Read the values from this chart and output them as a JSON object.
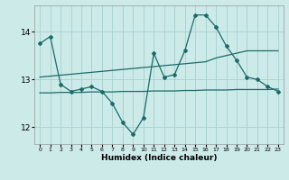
{
  "background_color": "#cceae8",
  "grid_color": "#aad4d2",
  "line_color": "#1a6b6b",
  "xlabel": "Humidex (Indice chaleur)",
  "xlim": [
    -0.5,
    23.5
  ],
  "ylim": [
    11.65,
    14.55
  ],
  "yticks": [
    12,
    13,
    14
  ],
  "series1_x": [
    0,
    1,
    2,
    3,
    4,
    5,
    6,
    7,
    8,
    9,
    10,
    11,
    12,
    13,
    14,
    15,
    16,
    17,
    18,
    19,
    20,
    21,
    22,
    23
  ],
  "series1_y": [
    13.75,
    13.9,
    12.9,
    12.75,
    12.8,
    12.85,
    12.75,
    12.5,
    12.1,
    11.85,
    12.2,
    13.55,
    13.05,
    13.1,
    13.6,
    14.35,
    14.35,
    14.1,
    13.7,
    13.4,
    13.05,
    13.0,
    12.85,
    12.75
  ],
  "series2_x": [
    0,
    1,
    2,
    3,
    4,
    5,
    6,
    7,
    8,
    9,
    10,
    11,
    12,
    13,
    14,
    15,
    16,
    17,
    18,
    19,
    20,
    21,
    22,
    23
  ],
  "series2_y": [
    13.05,
    13.07,
    13.09,
    13.11,
    13.13,
    13.15,
    13.17,
    13.19,
    13.21,
    13.23,
    13.25,
    13.27,
    13.29,
    13.31,
    13.33,
    13.35,
    13.37,
    13.45,
    13.5,
    13.55,
    13.6,
    13.6,
    13.6,
    13.6
  ],
  "series3_x": [
    0,
    1,
    2,
    3,
    4,
    5,
    6,
    7,
    8,
    9,
    10,
    11,
    12,
    13,
    14,
    15,
    16,
    17,
    18,
    19,
    20,
    21,
    22,
    23
  ],
  "series3_y": [
    12.72,
    12.72,
    12.73,
    12.73,
    12.73,
    12.74,
    12.74,
    12.74,
    12.75,
    12.75,
    12.75,
    12.76,
    12.76,
    12.76,
    12.77,
    12.77,
    12.78,
    12.78,
    12.78,
    12.79,
    12.79,
    12.79,
    12.79,
    12.8
  ]
}
